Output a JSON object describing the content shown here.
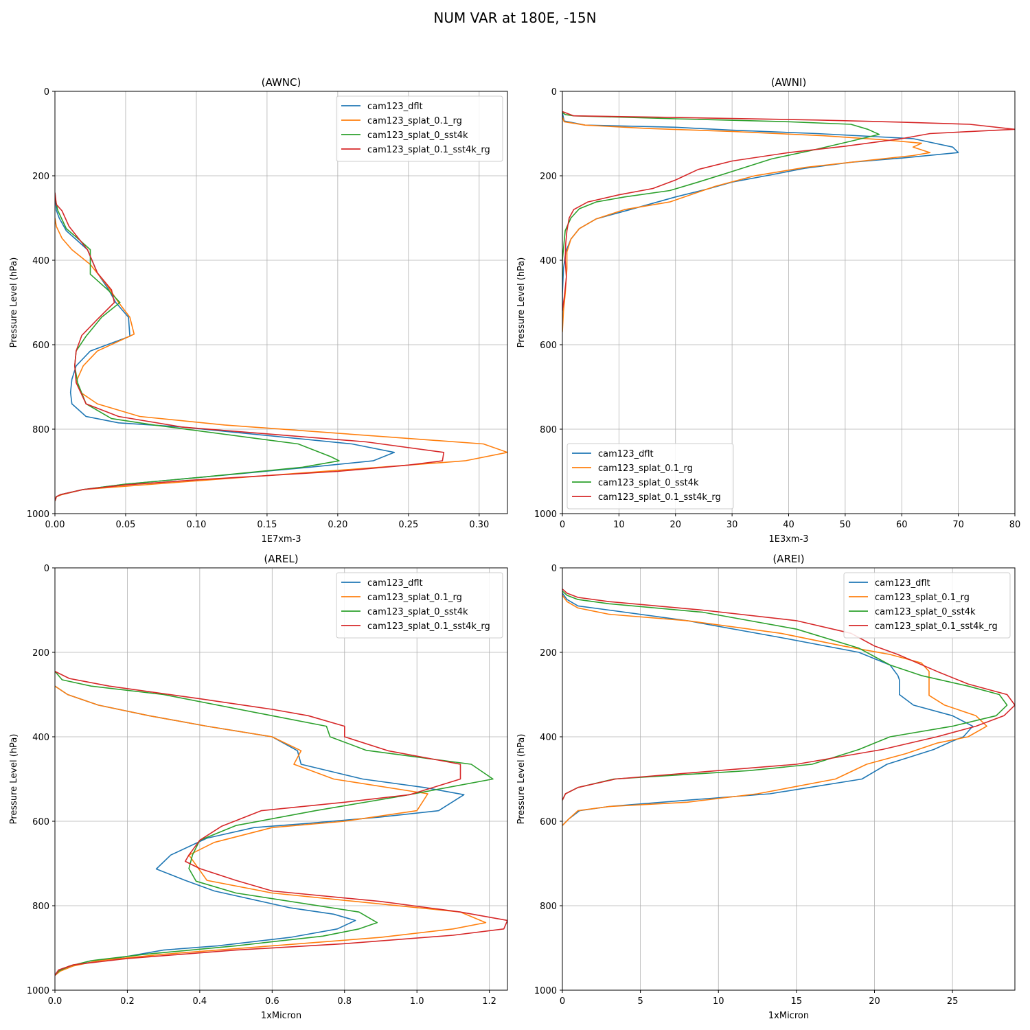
{
  "figure_title": "NUM VAR at 180E, -15N",
  "colors": {
    "cam123_dflt": "#1f77b4",
    "cam123_splat_0.1_rg": "#ff7f0e",
    "cam123_splat_0_sst4k": "#2ca02c",
    "cam123_splat_0.1_sst4k_rg": "#d62728"
  },
  "chart_data": [
    {
      "type": "line",
      "title": "(AWNC)",
      "xlabel": "1E7xm-3",
      "ylabel": "Pressure Level (hPa)",
      "xlim": [
        0,
        0.32
      ],
      "ylim": [
        1000,
        0
      ],
      "xticks": [
        0,
        0.05,
        0.1,
        0.15,
        0.2,
        0.25,
        0.3
      ],
      "xtick_labels": [
        "0.00",
        "0.05",
        "0.10",
        "0.15",
        "0.20",
        "0.25",
        "0.30"
      ],
      "yticks": [
        0,
        200,
        400,
        600,
        800,
        1000
      ],
      "ytick_labels": [
        "0",
        "200",
        "400",
        "600",
        "800",
        "1000"
      ],
      "legend_loc": "upper-right",
      "series": [
        {
          "name": "cam123_dflt",
          "x": [
            0,
            0.001,
            0.003,
            0.008,
            0.023,
            0.03,
            0.038,
            0.043,
            0.052,
            0.053,
            0.025,
            0.015,
            0.012,
            0.011,
            0.012,
            0.022,
            0.045,
            0.09,
            0.21,
            0.24,
            0.225,
            0.18,
            0.1,
            0.05,
            0.02,
            0.004,
            0.001,
            0
          ],
          "y": [
            240,
            282,
            300,
            330,
            375,
            430,
            470,
            500,
            535,
            580,
            615,
            650,
            682,
            713,
            740,
            770,
            785,
            795,
            835,
            855,
            875,
            890,
            915,
            930,
            943,
            955,
            960,
            970
          ]
        },
        {
          "name": "cam123_splat_0.1_rg",
          "x": [
            0,
            0.001,
            0.005,
            0.012,
            0.025,
            0.037,
            0.045,
            0.053,
            0.056,
            0.03,
            0.02,
            0.016,
            0.015,
            0.019,
            0.03,
            0.06,
            0.12,
            0.303,
            0.32,
            0.29,
            0.25,
            0.15,
            0.07,
            0.02,
            0.005,
            0.001,
            0
          ],
          "y": [
            300,
            320,
            348,
            375,
            410,
            460,
            500,
            535,
            575,
            615,
            650,
            680,
            690,
            715,
            740,
            770,
            790,
            835,
            855,
            875,
            885,
            910,
            930,
            943,
            955,
            960,
            970
          ]
        },
        {
          "name": "cam123_splat_0_sst4k",
          "x": [
            0,
            0.002,
            0.008,
            0.015,
            0.025,
            0.025,
            0.038,
            0.046,
            0.033,
            0.022,
            0.015,
            0.014,
            0.016,
            0.022,
            0.04,
            0.07,
            0.172,
            0.195,
            0.201,
            0.175,
            0.1,
            0.05,
            0.02,
            0.004,
            0.001,
            0
          ],
          "y": [
            250,
            282,
            325,
            345,
            375,
            433,
            472,
            500,
            535,
            580,
            615,
            650,
            690,
            740,
            775,
            790,
            835,
            865,
            875,
            890,
            915,
            930,
            943,
            955,
            960,
            970
          ]
        },
        {
          "name": "cam123_splat_0.1_sst4k_rg",
          "x": [
            0,
            0.001,
            0.005,
            0.01,
            0.023,
            0.03,
            0.04,
            0.042,
            0.03,
            0.019,
            0.015,
            0.014,
            0.015,
            0.022,
            0.045,
            0.09,
            0.22,
            0.275,
            0.274,
            0.25,
            0.2,
            0.1,
            0.05,
            0.02,
            0.004,
            0.001,
            0
          ],
          "y": [
            240,
            268,
            283,
            320,
            375,
            430,
            470,
            500,
            540,
            578,
            615,
            650,
            690,
            740,
            770,
            795,
            830,
            855,
            875,
            885,
            900,
            920,
            932,
            943,
            955,
            960,
            970
          ]
        }
      ]
    },
    {
      "type": "line",
      "title": "(AWNI)",
      "xlabel": "1E3xm-3",
      "ylabel": "Pressure Level (hPa)",
      "xlim": [
        0,
        80
      ],
      "ylim": [
        1000,
        0
      ],
      "xticks": [
        0,
        10,
        20,
        30,
        40,
        50,
        60,
        70,
        80
      ],
      "xtick_labels": [
        "0",
        "10",
        "20",
        "30",
        "40",
        "50",
        "60",
        "70",
        "80"
      ],
      "yticks": [
        0,
        200,
        400,
        600,
        800,
        1000
      ],
      "ytick_labels": [
        "0",
        "200",
        "400",
        "600",
        "800",
        "1000"
      ],
      "legend_loc": "lower-left",
      "series": [
        {
          "name": "cam123_dflt",
          "x": [
            0,
            0.3,
            4,
            20,
            30,
            45,
            62,
            69,
            70,
            60,
            51,
            43,
            36,
            30,
            26,
            20,
            12,
            6,
            3,
            1.5,
            0.6,
            0.2,
            0,
            0
          ],
          "y": [
            50,
            70,
            80,
            85,
            92,
            100,
            112,
            132,
            145,
            158,
            168,
            182,
            200,
            215,
            230,
            250,
            280,
            302,
            325,
            350,
            380,
            420,
            480,
            560
          ]
        },
        {
          "name": "cam123_splat_0.1_rg",
          "x": [
            0,
            0.3,
            4,
            15,
            30,
            46,
            57,
            63.5,
            62,
            65,
            62,
            53,
            43,
            34,
            27,
            19,
            11,
            6,
            3,
            1.5,
            0.8,
            0.8,
            0.5,
            0.2,
            0
          ],
          "y": [
            60,
            72,
            80,
            88,
            95,
            105,
            115,
            123,
            132,
            145,
            152,
            165,
            180,
            200,
            225,
            262,
            280,
            302,
            325,
            350,
            380,
            420,
            480,
            520,
            570
          ]
        },
        {
          "name": "cam123_splat_0_sst4k",
          "x": [
            0,
            0.5,
            2,
            20,
            40,
            51,
            54,
            56,
            51,
            44,
            37,
            30,
            24,
            19,
            11,
            6,
            3,
            1.5,
            0.5,
            0,
            0
          ],
          "y": [
            50,
            55,
            58,
            65,
            72,
            78,
            90,
            102,
            118,
            140,
            160,
            190,
            215,
            235,
            250,
            262,
            278,
            300,
            330,
            400,
            440
          ]
        },
        {
          "name": "cam123_splat_0.1_sst4k_rg",
          "x": [
            0,
            2,
            20,
            45,
            60,
            72,
            80,
            65,
            60,
            50,
            40,
            30,
            24,
            20,
            16,
            10,
            4.5,
            2,
            1.2,
            0.8,
            0.6,
            0.5,
            0.7,
            0.4,
            0
          ],
          "y": [
            48,
            58,
            62,
            68,
            73,
            78,
            90,
            100,
            112,
            130,
            145,
            165,
            185,
            210,
            230,
            245,
            262,
            280,
            300,
            330,
            360,
            400,
            440,
            480,
            520
          ]
        }
      ]
    },
    {
      "type": "line",
      "title": "(AREL)",
      "xlabel": "1xMicron",
      "ylabel": "Pressure Level (hPa)",
      "xlim": [
        0,
        1.25
      ],
      "ylim": [
        1000,
        0
      ],
      "xticks": [
        0,
        0.2,
        0.4,
        0.6,
        0.8,
        1.0,
        1.2
      ],
      "xtick_labels": [
        "0.0",
        "0.2",
        "0.4",
        "0.6",
        "0.8",
        "1.0",
        "1.2"
      ],
      "yticks": [
        0,
        200,
        400,
        600,
        800,
        1000
      ],
      "ytick_labels": [
        "0",
        "200",
        "400",
        "600",
        "800",
        "1000"
      ],
      "legend_loc": "upper-right",
      "series": [
        {
          "name": "cam123_dflt",
          "x": [
            0,
            0.035,
            0.12,
            0.26,
            0.42,
            0.6,
            0.67,
            0.68,
            0.85,
            1.02,
            1.13,
            1.06,
            0.9,
            0.7,
            0.55,
            0.42,
            0.32,
            0.28,
            0.36,
            0.44,
            0.65,
            0.77,
            0.83,
            0.78,
            0.65,
            0.45,
            0.3,
            0.2,
            0.12,
            0.06,
            0.02,
            0.005,
            0
          ],
          "y": [
            280,
            300,
            325,
            350,
            375,
            400,
            433,
            465,
            500,
            520,
            537,
            575,
            590,
            605,
            615,
            640,
            680,
            713,
            740,
            765,
            805,
            820,
            835,
            855,
            875,
            895,
            905,
            920,
            930,
            940,
            950,
            958,
            965
          ]
        },
        {
          "name": "cam123_splat_0.1_rg",
          "x": [
            0,
            0.035,
            0.12,
            0.26,
            0.42,
            0.6,
            0.68,
            0.66,
            0.77,
            1.03,
            1.0,
            0.8,
            0.6,
            0.44,
            0.37,
            0.42,
            0.6,
            1.12,
            1.19,
            1.1,
            0.9,
            0.6,
            0.3,
            0.12,
            0.05,
            0.015,
            0
          ],
          "y": [
            280,
            300,
            325,
            350,
            375,
            400,
            433,
            465,
            500,
            535,
            575,
            600,
            615,
            650,
            680,
            740,
            770,
            815,
            840,
            855,
            875,
            895,
            915,
            930,
            943,
            955,
            965
          ]
        },
        {
          "name": "cam123_splat_0_sst4k",
          "x": [
            0,
            0.02,
            0.1,
            0.3,
            0.6,
            0.75,
            0.76,
            0.86,
            1.15,
            1.21,
            0.96,
            0.72,
            0.5,
            0.4,
            0.38,
            0.37,
            0.39,
            0.5,
            0.84,
            0.89,
            0.84,
            0.74,
            0.5,
            0.25,
            0.1,
            0.04,
            0.01,
            0
          ],
          "y": [
            245,
            265,
            280,
            300,
            350,
            375,
            400,
            432,
            465,
            500,
            540,
            575,
            610,
            645,
            680,
            712,
            742,
            770,
            815,
            840,
            855,
            872,
            895,
            915,
            930,
            943,
            955,
            965
          ]
        },
        {
          "name": "cam123_splat_0.1_sst4k_rg",
          "x": [
            0,
            0.04,
            0.15,
            0.4,
            0.6,
            0.7,
            0.8,
            0.8,
            0.92,
            1.12,
            1.12,
            0.98,
            0.8,
            0.57,
            0.46,
            0.4,
            0.37,
            0.36,
            0.4,
            0.5,
            0.6,
            0.9,
            1.12,
            1.25,
            1.24,
            1.1,
            0.8,
            0.5,
            0.2,
            0.05,
            0.01,
            0
          ],
          "y": [
            245,
            262,
            280,
            310,
            335,
            350,
            375,
            400,
            433,
            465,
            500,
            537,
            555,
            575,
            612,
            645,
            680,
            695,
            712,
            740,
            765,
            790,
            815,
            835,
            855,
            870,
            890,
            905,
            925,
            940,
            952,
            965
          ]
        }
      ]
    },
    {
      "type": "line",
      "title": "(AREI)",
      "xlabel": "1xMicron",
      "ylabel": "Pressure Level (hPa)",
      "xlim": [
        0,
        29
      ],
      "ylim": [
        1000,
        0
      ],
      "xticks": [
        0,
        5,
        10,
        15,
        20,
        25
      ],
      "xtick_labels": [
        "0",
        "5",
        "10",
        "15",
        "20",
        "25"
      ],
      "yticks": [
        0,
        200,
        400,
        600,
        800,
        1000
      ],
      "ytick_labels": [
        "0",
        "200",
        "400",
        "600",
        "800",
        "1000"
      ],
      "legend_loc": "upper-right",
      "series": [
        {
          "name": "cam123_dflt",
          "x": [
            0,
            0.3,
            1,
            3,
            8,
            14,
            19,
            21,
            21.5,
            21.6,
            21.6,
            22.5,
            25,
            26.3,
            25.7,
            25,
            23.8,
            20.8,
            19.2,
            13.3,
            8,
            3,
            1.1,
            0.4,
            0
          ],
          "y": [
            60,
            75,
            90,
            100,
            125,
            165,
            200,
            230,
            255,
            265,
            300,
            325,
            350,
            375,
            400,
            410,
            430,
            465,
            500,
            535,
            550,
            565,
            575,
            595,
            610
          ]
        },
        {
          "name": "cam123_splat_0.1_rg",
          "x": [
            0,
            0.3,
            1,
            3,
            8,
            14,
            18,
            21,
            23,
            23.5,
            23.5,
            24.5,
            26.5,
            27.2,
            26,
            24,
            22,
            19.5,
            17.5,
            12.5,
            8,
            3,
            1,
            0.4,
            0
          ],
          "y": [
            65,
            80,
            95,
            110,
            125,
            155,
            185,
            205,
            225,
            245,
            302,
            325,
            350,
            375,
            400,
            415,
            440,
            465,
            500,
            535,
            555,
            565,
            575,
            595,
            610
          ]
        },
        {
          "name": "cam123_splat_0_sst4k",
          "x": [
            0,
            0.3,
            1,
            3,
            9,
            15,
            19,
            21,
            23,
            26,
            28,
            28.5,
            27.8,
            25,
            21,
            19,
            16,
            12,
            3.3,
            1,
            0.2,
            0
          ],
          "y": [
            55,
            65,
            75,
            85,
            105,
            145,
            190,
            230,
            255,
            280,
            300,
            325,
            350,
            375,
            400,
            430,
            465,
            480,
            500,
            520,
            535,
            550
          ]
        },
        {
          "name": "cam123_splat_0.1_sst4k_rg",
          "x": [
            0,
            0.3,
            1,
            3,
            9,
            15,
            18.5,
            20,
            21.5,
            24,
            26,
            28.5,
            29,
            28.3,
            26.5,
            24,
            20.5,
            15,
            10,
            3.4,
            1,
            0.2,
            0
          ],
          "y": [
            50,
            60,
            70,
            80,
            100,
            125,
            155,
            185,
            205,
            245,
            275,
            300,
            325,
            350,
            375,
            400,
            430,
            465,
            480,
            500,
            520,
            535,
            550
          ]
        }
      ]
    }
  ]
}
